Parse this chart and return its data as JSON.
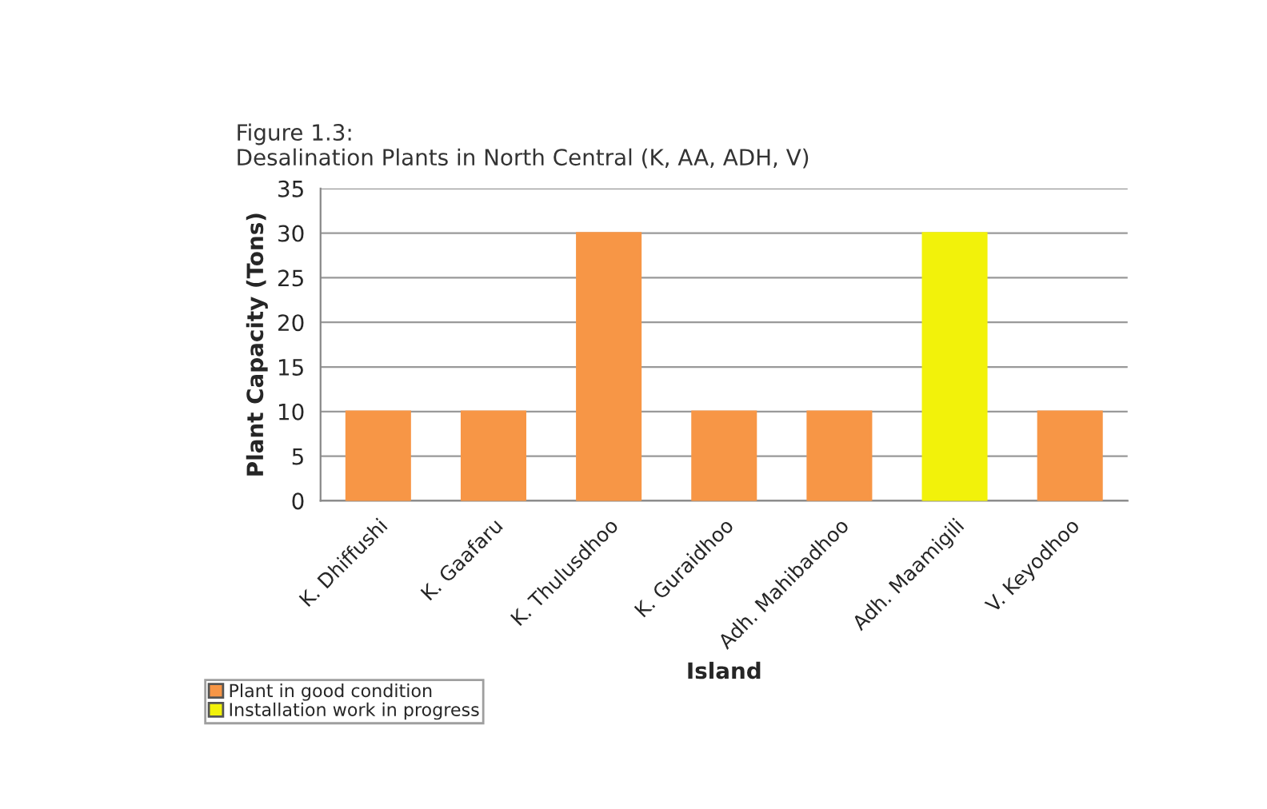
{
  "chart_data": {
    "type": "bar",
    "title": "Figure 1.3:\nDesalination Plants in North Central (K, AA, ADH, V)",
    "xlabel": "Island",
    "ylabel": "Plant Capacity (Tons)",
    "categories": [
      "K. Dhiffushi",
      "K. Gaafaru",
      "K. Thulusdhoo",
      "K. Guraidhoo",
      "Adh. Mahibadhoo",
      "Adh. Maamigili",
      "V. Keyodhoo"
    ],
    "series": [
      {
        "name": "Plant in good condition",
        "color": "#f79646",
        "values": [
          10,
          10,
          30,
          10,
          10,
          null,
          10
        ]
      },
      {
        "name": "Installation work in progress",
        "color": "#f2f20a",
        "values": [
          null,
          null,
          null,
          null,
          null,
          30,
          null
        ]
      }
    ],
    "ylim": [
      0,
      35
    ],
    "yticks": [
      0,
      5,
      10,
      15,
      20,
      25,
      30,
      35
    ],
    "grid": "y",
    "legend": "bottom left"
  }
}
